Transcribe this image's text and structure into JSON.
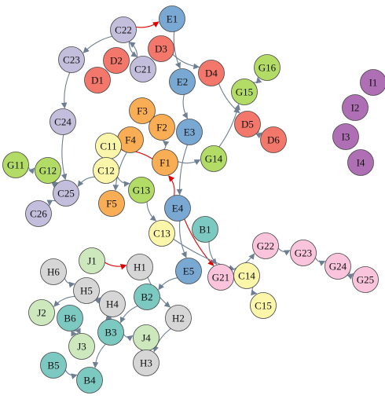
{
  "colors": {
    "edge": "#6e7f93",
    "edge_highlight": "#e00000",
    "node_stroke": "#444444",
    "groups": {
      "A": "#c3bedc",
      "B": "#7cc9c1",
      "C": "#fbf6a9",
      "D": "#f4776b",
      "E": "#79a8d3",
      "F": "#f9ad55",
      "G": "#b2dc66",
      "Gp": "#f9c4dc",
      "H": "#d6d6d6",
      "I": "#ae6fb4",
      "J": "#cde8bd"
    }
  },
  "nodes": [
    {
      "id": "C22",
      "label": "C22",
      "group": "A"
    },
    {
      "id": "E1",
      "label": "E1",
      "group": "E"
    },
    {
      "id": "D3",
      "label": "D3",
      "group": "D"
    },
    {
      "id": "C23",
      "label": "C23",
      "group": "A"
    },
    {
      "id": "D2",
      "label": "D2",
      "group": "D"
    },
    {
      "id": "C21",
      "label": "C21",
      "group": "A"
    },
    {
      "id": "D1",
      "label": "D1",
      "group": "D"
    },
    {
      "id": "E2",
      "label": "E2",
      "group": "E"
    },
    {
      "id": "D4",
      "label": "D4",
      "group": "D"
    },
    {
      "id": "G16",
      "label": "G16",
      "group": "G"
    },
    {
      "id": "G15",
      "label": "G15",
      "group": "G"
    },
    {
      "id": "I1",
      "label": "I1",
      "group": "I"
    },
    {
      "id": "I2",
      "label": "I2",
      "group": "I"
    },
    {
      "id": "I3",
      "label": "I3",
      "group": "I"
    },
    {
      "id": "I4",
      "label": "I4",
      "group": "I"
    },
    {
      "id": "C24",
      "label": "C24",
      "group": "A"
    },
    {
      "id": "F3",
      "label": "F3",
      "group": "F"
    },
    {
      "id": "F2",
      "label": "F2",
      "group": "F"
    },
    {
      "id": "E3",
      "label": "E3",
      "group": "E"
    },
    {
      "id": "D5",
      "label": "D5",
      "group": "D"
    },
    {
      "id": "D6",
      "label": "D6",
      "group": "D"
    },
    {
      "id": "F4",
      "label": "F4",
      "group": "F"
    },
    {
      "id": "C11",
      "label": "C11",
      "group": "C"
    },
    {
      "id": "F1",
      "label": "F1",
      "group": "F"
    },
    {
      "id": "G14",
      "label": "G14",
      "group": "G"
    },
    {
      "id": "G11",
      "label": "G11",
      "group": "G"
    },
    {
      "id": "G12",
      "label": "G12",
      "group": "G"
    },
    {
      "id": "C12",
      "label": "C12",
      "group": "C"
    },
    {
      "id": "G13",
      "label": "G13",
      "group": "G"
    },
    {
      "id": "C25",
      "label": "C25",
      "group": "A"
    },
    {
      "id": "F5",
      "label": "F5",
      "group": "F"
    },
    {
      "id": "E4",
      "label": "E4",
      "group": "E"
    },
    {
      "id": "C26",
      "label": "C26",
      "group": "A"
    },
    {
      "id": "B1",
      "label": "B1",
      "group": "B"
    },
    {
      "id": "C13",
      "label": "C13",
      "group": "C"
    },
    {
      "id": "G22",
      "label": "G22",
      "group": "Gp"
    },
    {
      "id": "G23",
      "label": "G23",
      "group": "Gp"
    },
    {
      "id": "J1",
      "label": "J1",
      "group": "J"
    },
    {
      "id": "H1",
      "label": "H1",
      "group": "H"
    },
    {
      "id": "H6",
      "label": "H6",
      "group": "H"
    },
    {
      "id": "E5",
      "label": "E5",
      "group": "E"
    },
    {
      "id": "G21",
      "label": "G21",
      "group": "Gp"
    },
    {
      "id": "C14",
      "label": "C14",
      "group": "C"
    },
    {
      "id": "G24",
      "label": "G24",
      "group": "Gp"
    },
    {
      "id": "G25",
      "label": "G25",
      "group": "Gp"
    },
    {
      "id": "H5",
      "label": "H5",
      "group": "H"
    },
    {
      "id": "B2",
      "label": "B2",
      "group": "B"
    },
    {
      "id": "H4",
      "label": "H4",
      "group": "H"
    },
    {
      "id": "J2",
      "label": "J2",
      "group": "J"
    },
    {
      "id": "C15",
      "label": "C15",
      "group": "C"
    },
    {
      "id": "B6",
      "label": "B6",
      "group": "B"
    },
    {
      "id": "H2",
      "label": "H2",
      "group": "H"
    },
    {
      "id": "B3",
      "label": "B3",
      "group": "B"
    },
    {
      "id": "J4",
      "label": "J4",
      "group": "J"
    },
    {
      "id": "J3",
      "label": "J3",
      "group": "J"
    },
    {
      "id": "H3",
      "label": "H3",
      "group": "H"
    },
    {
      "id": "B5",
      "label": "B5",
      "group": "B"
    },
    {
      "id": "B4",
      "label": "B4",
      "group": "B"
    }
  ],
  "edges": [
    {
      "from": "C22",
      "to": "E1",
      "highlight": true
    },
    {
      "from": "C22",
      "to": "C23"
    },
    {
      "from": "C22",
      "to": "C21"
    },
    {
      "from": "C21",
      "to": "C22"
    },
    {
      "from": "E1",
      "to": "E2"
    },
    {
      "from": "D3",
      "to": "D4"
    },
    {
      "from": "E2",
      "to": "E3"
    },
    {
      "from": "D4",
      "to": "D5"
    },
    {
      "from": "G15",
      "to": "G16"
    },
    {
      "from": "C23",
      "to": "C24"
    },
    {
      "from": "C24",
      "to": "C25"
    },
    {
      "from": "D5",
      "to": "D6"
    },
    {
      "from": "F1",
      "to": "C11",
      "highlight": true
    },
    {
      "from": "F1",
      "to": "G14"
    },
    {
      "from": "F1",
      "to": "F2"
    },
    {
      "from": "G14",
      "to": "G15"
    },
    {
      "from": "G11",
      "to": "G12"
    },
    {
      "from": "G12",
      "to": "C25"
    },
    {
      "from": "C12",
      "to": "C25"
    },
    {
      "from": "C12",
      "to": "G13"
    },
    {
      "from": "C11",
      "to": "C12"
    },
    {
      "from": "F4",
      "to": "F5"
    },
    {
      "from": "C25",
      "to": "C26"
    },
    {
      "from": "E3",
      "to": "E4"
    },
    {
      "from": "E4",
      "to": "F1",
      "highlight": true
    },
    {
      "from": "E4",
      "to": "G21",
      "highlight": true
    },
    {
      "from": "E4",
      "to": "E5"
    },
    {
      "from": "G13",
      "to": "C13"
    },
    {
      "from": "C13",
      "to": "C14"
    },
    {
      "from": "B1",
      "to": "G21"
    },
    {
      "from": "G21",
      "to": "G22"
    },
    {
      "from": "G22",
      "to": "G23"
    },
    {
      "from": "G23",
      "to": "G24"
    },
    {
      "from": "G24",
      "to": "G25"
    },
    {
      "from": "C14",
      "to": "C15"
    },
    {
      "from": "J1",
      "to": "H1",
      "highlight": true
    },
    {
      "from": "H1",
      "to": "H2"
    },
    {
      "from": "H6",
      "to": "H5"
    },
    {
      "from": "H5",
      "to": "H4"
    },
    {
      "from": "H5",
      "to": "J2"
    },
    {
      "from": "E5",
      "to": "B2"
    },
    {
      "from": "B2",
      "to": "B3"
    },
    {
      "from": "H4",
      "to": "B3"
    },
    {
      "from": "B3",
      "to": "J4"
    },
    {
      "from": "B3",
      "to": "B4"
    },
    {
      "from": "H2",
      "to": "H3"
    },
    {
      "from": "J4",
      "to": "H3"
    },
    {
      "from": "B6",
      "to": "J3"
    },
    {
      "from": "J3",
      "to": "B6"
    },
    {
      "from": "B5",
      "to": "B4"
    }
  ]
}
